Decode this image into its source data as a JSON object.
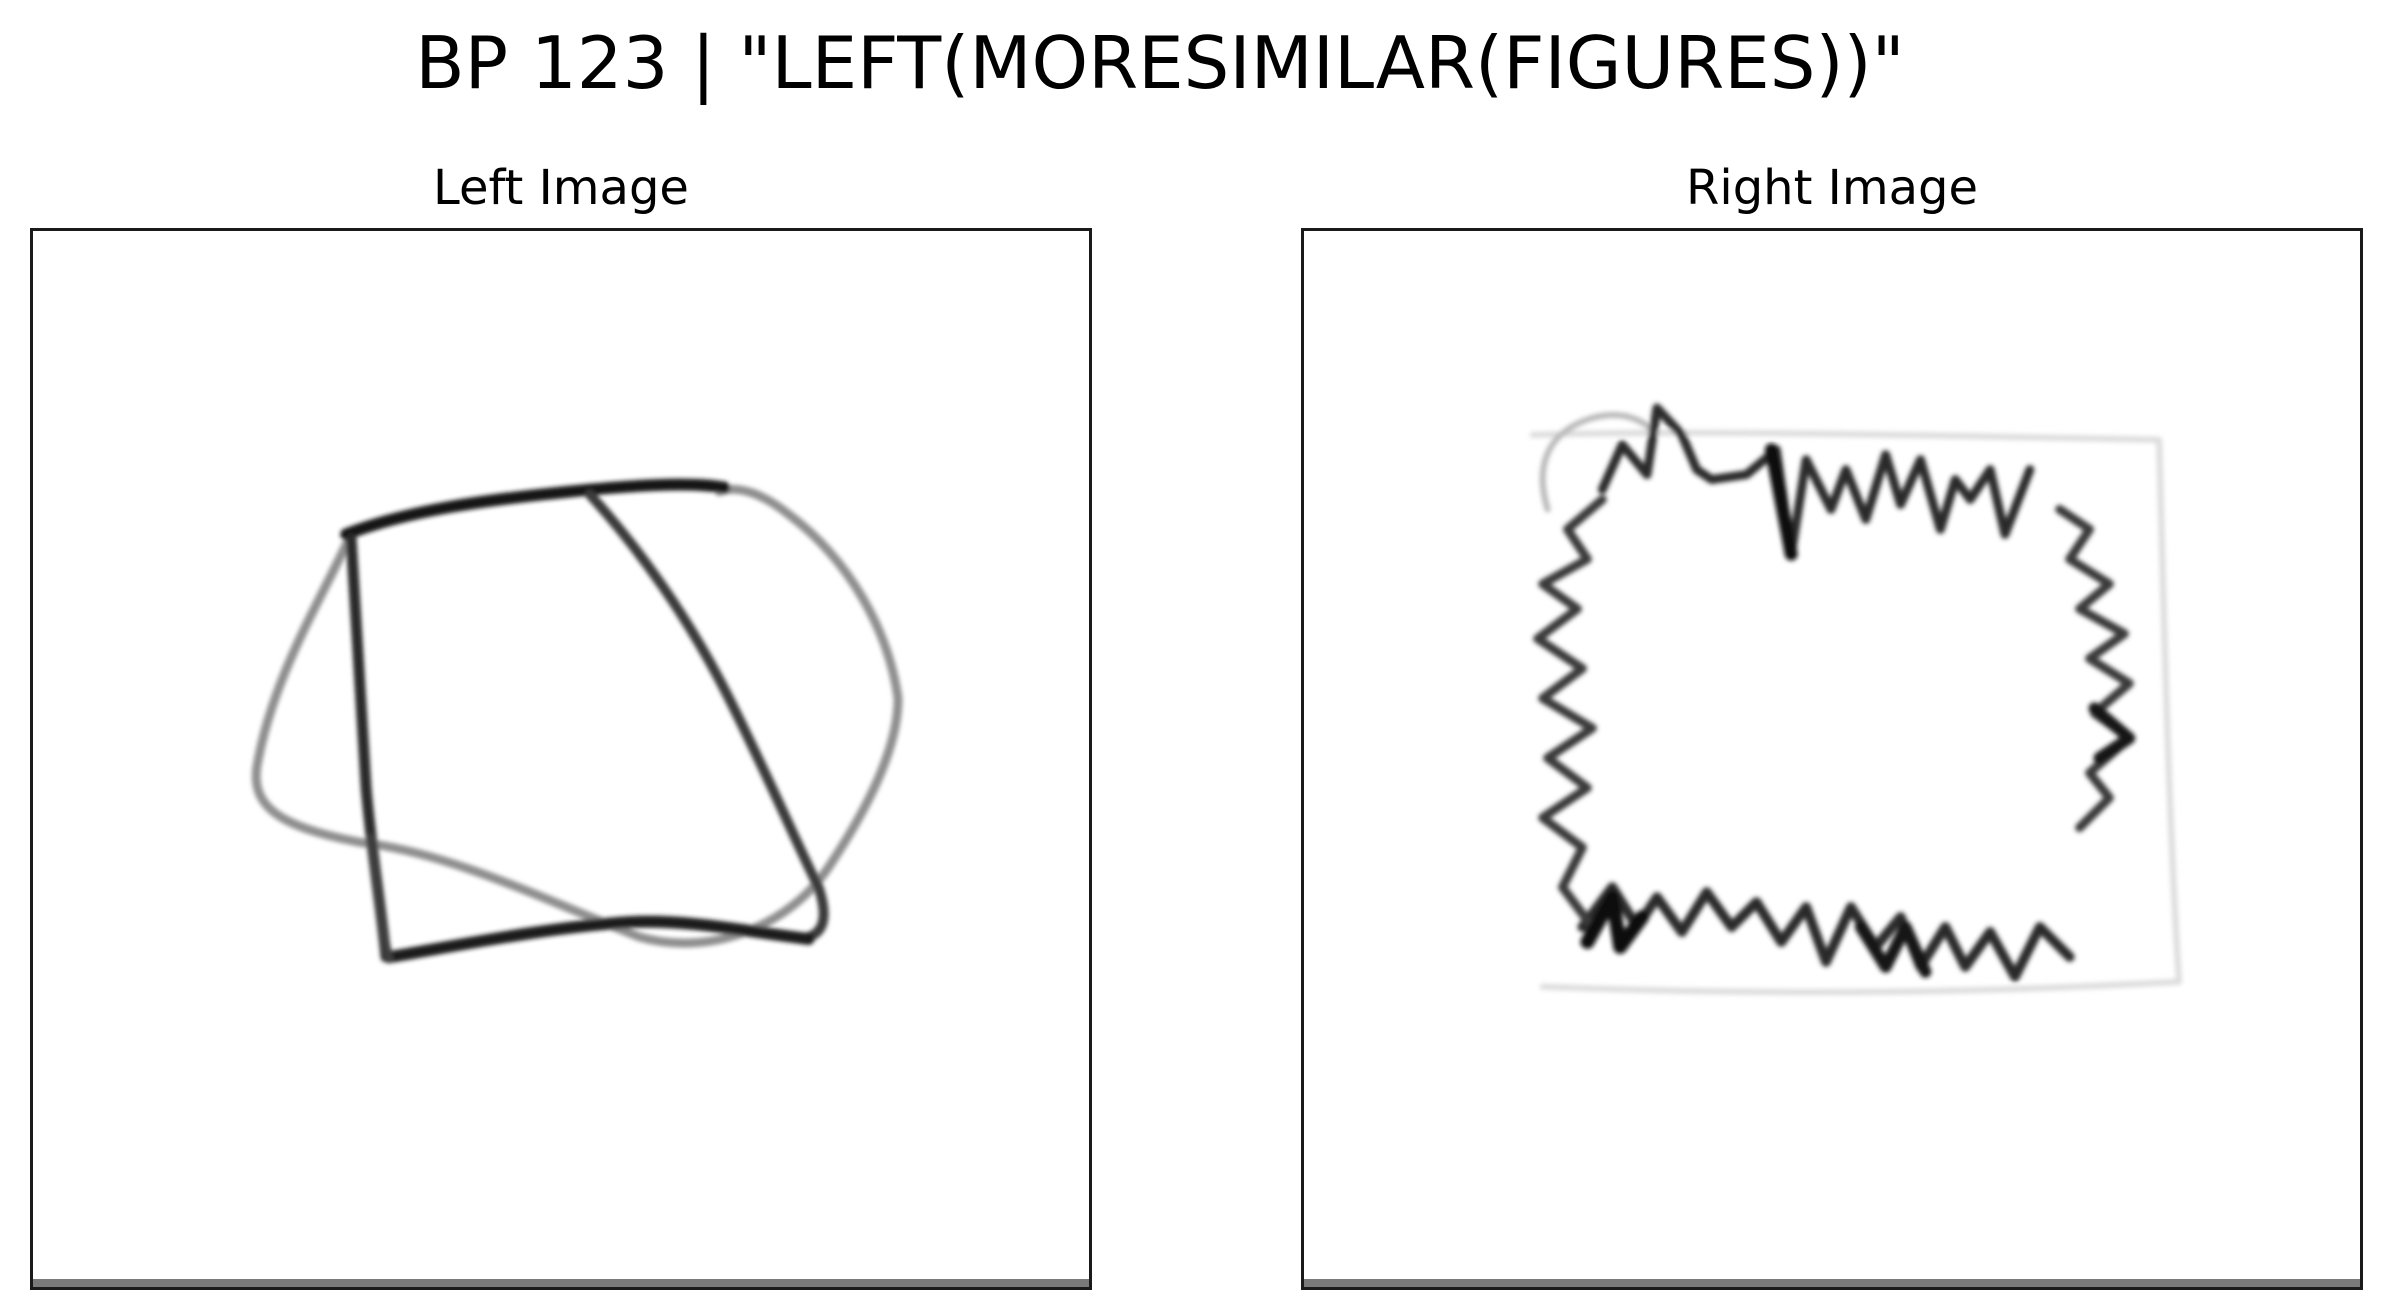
{
  "title": "BP 123 | \"LEFT(MORESIMILAR(FIGURES))\"",
  "panels": {
    "left": {
      "title": "Left Image"
    },
    "right": {
      "title": "Right Image"
    }
  },
  "colors": {
    "stroke_dark": "#111111",
    "stroke_mid": "#555555",
    "stroke_light": "#9a9a9a",
    "frame": "#1a1a1a",
    "bottom_bar": "#7a7a7a"
  }
}
